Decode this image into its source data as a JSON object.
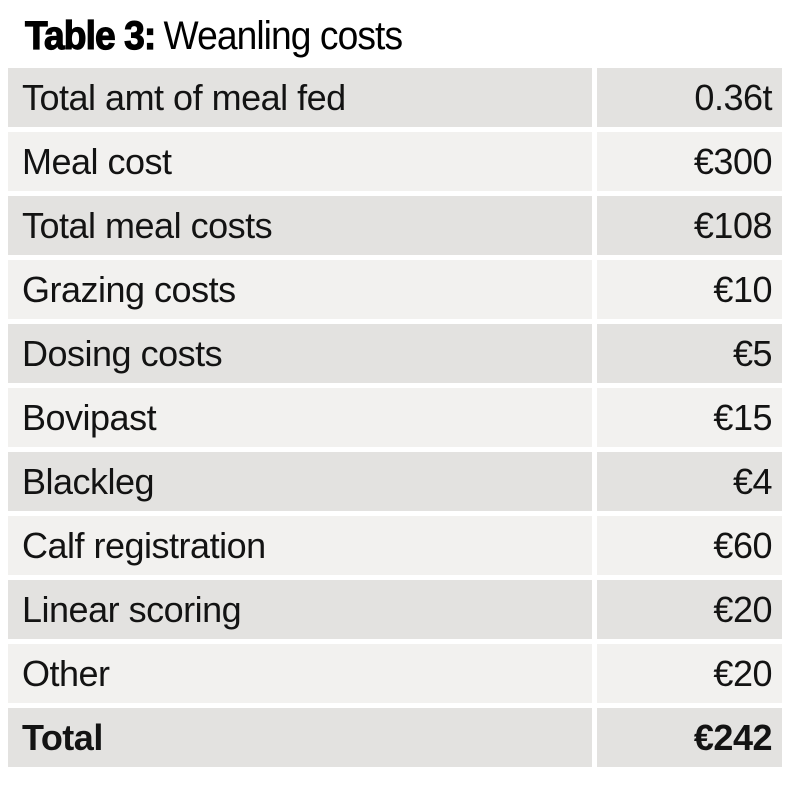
{
  "title": {
    "prefix": "Table 3:",
    "rest": "Weanling costs"
  },
  "table": {
    "rows": [
      {
        "label": "Total amt of meal fed",
        "value": "0.36t"
      },
      {
        "label": "Meal cost",
        "value": "€300"
      },
      {
        "label": "Total meal costs",
        "value": "€108"
      },
      {
        "label": "Grazing costs",
        "value": "€10"
      },
      {
        "label": "Dosing costs",
        "value": "€5"
      },
      {
        "label": "Bovipast",
        "value": "€15"
      },
      {
        "label": "Blackleg",
        "value": "€4"
      },
      {
        "label": "Calf registration",
        "value": "€60"
      },
      {
        "label": "Linear scoring",
        "value": "€20"
      },
      {
        "label": "Other",
        "value": "€20"
      },
      {
        "label": "Total",
        "value": "€242",
        "emphasis": true
      }
    ]
  },
  "colors": {
    "row_dark": "#e3e2e0",
    "row_light": "#f2f1ef",
    "page_background": "#ffffff",
    "text": "#131313"
  }
}
